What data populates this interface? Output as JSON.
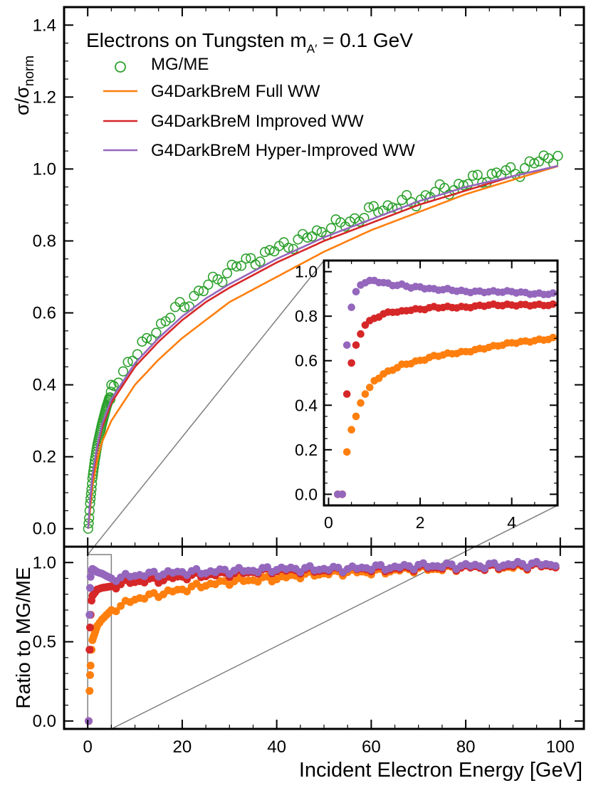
{
  "figure": {
    "title_main": "Electrons on Tungsten m",
    "title_sub": "A′",
    "title_tail": " = 0.1 GeV"
  },
  "colors": {
    "mgme": "#2ca02c",
    "full": "#ff7f0e",
    "improved": "#d62728",
    "hyper": "#9467bd",
    "guide": "#808080"
  },
  "chart_data": [
    {
      "type": "scatter",
      "panel": "main",
      "ylabel_base": "σ/σ",
      "ylabel_sub": "norm",
      "xlim": [
        -5,
        105
      ],
      "ylim": [
        -0.05,
        1.45
      ],
      "yticks": [
        "0.0",
        "0.2",
        "0.4",
        "0.6",
        "0.8",
        "1.0",
        "1.2",
        "1.4"
      ],
      "ytick_values": [
        0.0,
        0.2,
        0.4,
        0.6,
        0.8,
        1.0,
        1.2,
        1.4
      ],
      "legend": [
        "MG/ME",
        "G4DarkBreM Full WW",
        "G4DarkBreM Improved WW",
        "G4DarkBreM Hyper-Improved WW"
      ],
      "legend_position": "top-left",
      "series": [
        {
          "name": "MG/ME",
          "style": "open-circles",
          "x": [
            0.1,
            0.3,
            0.5,
            0.8,
            1.0,
            1.5,
            2.0,
            3.0,
            4.0,
            5.0,
            6.0,
            7.0,
            8.0,
            9.0,
            10,
            12,
            14,
            16,
            18,
            20,
            22,
            25,
            28,
            30,
            32,
            35,
            38,
            40,
            42,
            45,
            48,
            50,
            52,
            55,
            58,
            60,
            62,
            65,
            68,
            70,
            72,
            75,
            78,
            80,
            82,
            85,
            88,
            90,
            92,
            95,
            98,
            100
          ],
          "y": [
            0.0,
            0.03,
            0.07,
            0.11,
            0.14,
            0.19,
            0.23,
            0.29,
            0.34,
            0.38,
            0.41,
            0.43,
            0.45,
            0.47,
            0.48,
            0.51,
            0.55,
            0.57,
            0.6,
            0.62,
            0.64,
            0.67,
            0.7,
            0.72,
            0.73,
            0.75,
            0.76,
            0.78,
            0.79,
            0.8,
            0.82,
            0.83,
            0.84,
            0.85,
            0.87,
            0.88,
            0.89,
            0.9,
            0.91,
            0.91,
            0.93,
            0.94,
            0.95,
            0.96,
            0.97,
            0.98,
            0.99,
            0.99,
            1.0,
            1.02,
            1.03,
            1.05
          ]
        },
        {
          "name": "G4DarkBreM Full WW",
          "style": "line",
          "x": [
            0.1,
            0.5,
            1,
            2,
            3,
            5,
            8,
            10,
            15,
            20,
            25,
            30,
            40,
            50,
            60,
            70,
            80,
            90,
            100
          ],
          "y": [
            0.0,
            0.05,
            0.12,
            0.19,
            0.24,
            0.3,
            0.36,
            0.4,
            0.47,
            0.53,
            0.58,
            0.63,
            0.7,
            0.77,
            0.83,
            0.88,
            0.93,
            0.97,
            1.01
          ]
        },
        {
          "name": "G4DarkBreM Improved WW",
          "style": "line",
          "x": [
            0.1,
            0.5,
            1,
            2,
            3,
            5,
            8,
            10,
            15,
            20,
            25,
            30,
            40,
            50,
            60,
            70,
            80,
            90,
            100
          ],
          "y": [
            0.0,
            0.07,
            0.14,
            0.22,
            0.28,
            0.35,
            0.41,
            0.45,
            0.52,
            0.58,
            0.63,
            0.67,
            0.74,
            0.8,
            0.85,
            0.9,
            0.94,
            0.98,
            1.01
          ]
        },
        {
          "name": "G4DarkBreM Hyper-Improved WW",
          "style": "line",
          "x": [
            0.1,
            0.5,
            1,
            2,
            3,
            5,
            8,
            10,
            15,
            20,
            25,
            30,
            40,
            50,
            60,
            70,
            80,
            90,
            100
          ],
          "y": [
            0.0,
            0.08,
            0.15,
            0.23,
            0.29,
            0.36,
            0.42,
            0.46,
            0.53,
            0.59,
            0.64,
            0.68,
            0.75,
            0.81,
            0.86,
            0.91,
            0.95,
            0.98,
            1.01
          ]
        }
      ]
    },
    {
      "type": "scatter",
      "panel": "inset",
      "xlim": [
        -0.1,
        5.0
      ],
      "ylim": [
        -0.05,
        1.05
      ],
      "xticks": [
        "0",
        "2",
        "4"
      ],
      "xtick_values": [
        0,
        2,
        4
      ],
      "yticks": [
        "0.0",
        "0.2",
        "0.4",
        "0.6",
        "0.8",
        "1.0"
      ],
      "ytick_values": [
        0.0,
        0.2,
        0.4,
        0.6,
        0.8,
        1.0
      ],
      "series": [
        {
          "name": "G4DarkBreM Full WW",
          "x": [
            0.2,
            0.3,
            0.4,
            0.5,
            0.6,
            0.7,
            0.8,
            0.9,
            1.0,
            1.2,
            1.4,
            1.6,
            1.8,
            2.0,
            2.3,
            2.6,
            3.0,
            3.5,
            4.0,
            4.5,
            4.9
          ],
          "y": [
            0.0,
            0.0,
            0.19,
            0.29,
            0.35,
            0.41,
            0.45,
            0.48,
            0.51,
            0.54,
            0.56,
            0.58,
            0.59,
            0.6,
            0.62,
            0.63,
            0.64,
            0.66,
            0.68,
            0.69,
            0.7
          ]
        },
        {
          "name": "G4DarkBreM Improved WW",
          "x": [
            0.2,
            0.3,
            0.4,
            0.5,
            0.6,
            0.7,
            0.8,
            0.9,
            1.0,
            1.2,
            1.4,
            1.6,
            1.8,
            2.0,
            2.3,
            2.6,
            3.0,
            3.5,
            4.0,
            4.5,
            4.9
          ],
          "y": [
            0.0,
            0.0,
            0.45,
            0.59,
            0.67,
            0.72,
            0.76,
            0.78,
            0.79,
            0.81,
            0.82,
            0.82,
            0.83,
            0.83,
            0.84,
            0.84,
            0.84,
            0.85,
            0.85,
            0.85,
            0.85
          ]
        },
        {
          "name": "G4DarkBreM Hyper-Improved WW",
          "x": [
            0.2,
            0.3,
            0.4,
            0.5,
            0.6,
            0.7,
            0.8,
            0.9,
            1.0,
            1.2,
            1.4,
            1.6,
            1.8,
            2.0,
            2.3,
            2.6,
            3.0,
            3.5,
            4.0,
            4.5,
            4.9
          ],
          "y": [
            0.0,
            0.0,
            0.67,
            0.84,
            0.91,
            0.94,
            0.95,
            0.96,
            0.96,
            0.95,
            0.94,
            0.94,
            0.93,
            0.93,
            0.92,
            0.92,
            0.91,
            0.91,
            0.91,
            0.9,
            0.9
          ]
        }
      ]
    },
    {
      "type": "scatter",
      "panel": "ratio",
      "ylabel": "Ratio to MG/ME",
      "xlabel": "Incident Electron Energy [GeV]",
      "xlim": [
        -5,
        105
      ],
      "ylim": [
        -0.05,
        1.1
      ],
      "xticks": [
        "0",
        "20",
        "40",
        "60",
        "80",
        "100"
      ],
      "xtick_values": [
        0,
        20,
        40,
        60,
        80,
        100
      ],
      "yticks": [
        "0.0",
        "0.5",
        "1.0"
      ],
      "ytick_values": [
        0.0,
        0.5,
        1.0
      ],
      "series": [
        {
          "name": "G4DarkBreM Full WW",
          "x": [
            0.2,
            0.4,
            0.5,
            0.6,
            0.8,
            1,
            2,
            3,
            5,
            8,
            10,
            15,
            20,
            25,
            30,
            35,
            40,
            45,
            50,
            55,
            60,
            65,
            70,
            75,
            80,
            85,
            90,
            95,
            99
          ],
          "y": [
            0.0,
            0.19,
            0.29,
            0.35,
            0.45,
            0.51,
            0.6,
            0.64,
            0.7,
            0.74,
            0.77,
            0.8,
            0.83,
            0.86,
            0.88,
            0.89,
            0.9,
            0.92,
            0.93,
            0.94,
            0.94,
            0.95,
            0.96,
            0.96,
            0.97,
            0.97,
            0.97,
            0.98,
            0.98
          ]
        },
        {
          "name": "G4DarkBreM Improved WW",
          "x": [
            0.2,
            0.4,
            0.5,
            0.6,
            0.8,
            1,
            2,
            3,
            5,
            8,
            10,
            15,
            20,
            25,
            30,
            35,
            40,
            45,
            50,
            55,
            60,
            65,
            70,
            75,
            80,
            85,
            90,
            95,
            99
          ],
          "y": [
            0.0,
            0.45,
            0.59,
            0.67,
            0.76,
            0.79,
            0.83,
            0.84,
            0.85,
            0.87,
            0.88,
            0.89,
            0.91,
            0.92,
            0.93,
            0.94,
            0.95,
            0.95,
            0.95,
            0.96,
            0.96,
            0.96,
            0.97,
            0.97,
            0.97,
            0.97,
            0.98,
            0.98,
            0.98
          ]
        },
        {
          "name": "G4DarkBreM Hyper-Improved WW",
          "x": [
            0.2,
            0.4,
            0.5,
            0.6,
            0.8,
            1,
            2,
            3,
            5,
            8,
            10,
            15,
            20,
            25,
            30,
            35,
            40,
            45,
            50,
            55,
            60,
            65,
            70,
            75,
            80,
            85,
            90,
            95,
            99
          ],
          "y": [
            0.0,
            0.67,
            0.84,
            0.91,
            0.95,
            0.96,
            0.94,
            0.93,
            0.9,
            0.91,
            0.92,
            0.93,
            0.94,
            0.94,
            0.95,
            0.95,
            0.96,
            0.96,
            0.96,
            0.96,
            0.97,
            0.97,
            0.98,
            0.98,
            0.98,
            0.98,
            0.99,
            0.99,
            0.99
          ]
        }
      ]
    }
  ]
}
